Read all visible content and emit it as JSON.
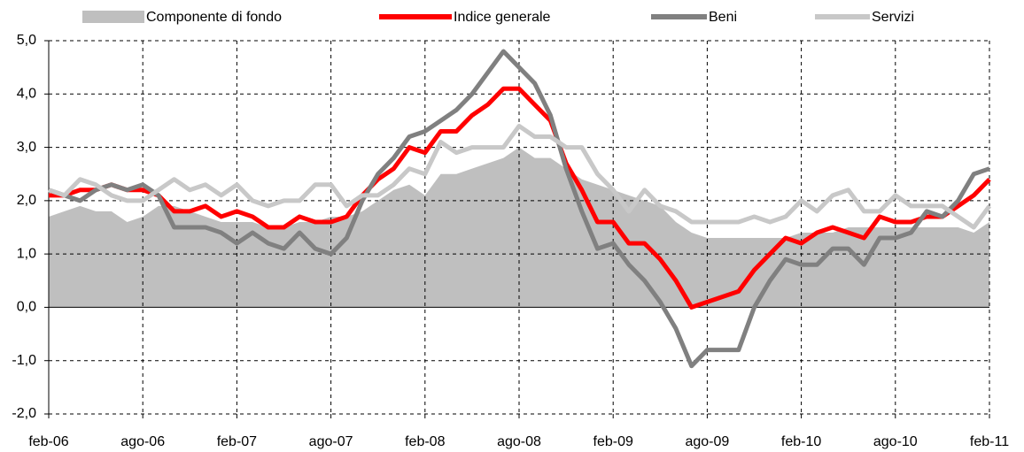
{
  "chart_data": {
    "type": "line",
    "categories": [
      "feb-06",
      null,
      null,
      null,
      null,
      null,
      "ago-06",
      null,
      null,
      null,
      null,
      null,
      "feb-07",
      null,
      null,
      null,
      null,
      null,
      "ago-07",
      null,
      null,
      null,
      null,
      null,
      "feb-08",
      null,
      null,
      null,
      null,
      null,
      "ago-08",
      null,
      null,
      null,
      null,
      null,
      "feb-09",
      null,
      null,
      null,
      null,
      null,
      "ago-09",
      null,
      null,
      null,
      null,
      null,
      "feb-10",
      null,
      null,
      null,
      null,
      null,
      "ago-10",
      null,
      null,
      null,
      null,
      null,
      "feb-11"
    ],
    "series": [
      {
        "name": "Componente di fondo",
        "type": "area",
        "color": "#bfbfbf",
        "values": [
          1.7,
          1.8,
          1.9,
          1.8,
          1.8,
          1.6,
          1.7,
          1.9,
          1.9,
          1.8,
          1.7,
          1.6,
          1.6,
          1.6,
          1.5,
          1.5,
          1.6,
          1.6,
          1.7,
          1.7,
          1.8,
          2.0,
          2.2,
          2.3,
          2.1,
          2.5,
          2.5,
          2.6,
          2.7,
          2.8,
          3.0,
          2.8,
          2.8,
          2.6,
          2.4,
          2.3,
          2.2,
          2.1,
          2.0,
          1.9,
          1.6,
          1.4,
          1.3,
          1.3,
          1.3,
          1.3,
          1.3,
          1.3,
          1.4,
          1.4,
          1.4,
          1.5,
          1.5,
          1.5,
          1.5,
          1.5,
          1.5,
          1.5,
          1.5,
          1.4,
          1.6
        ]
      },
      {
        "name": "Indice generale",
        "type": "line",
        "color": "#ff0000",
        "values": [
          2.1,
          2.1,
          2.2,
          2.2,
          2.3,
          2.2,
          2.2,
          2.1,
          1.8,
          1.8,
          1.9,
          1.7,
          1.8,
          1.7,
          1.5,
          1.5,
          1.7,
          1.6,
          1.6,
          1.7,
          2.1,
          2.4,
          2.6,
          3.0,
          2.9,
          3.3,
          3.3,
          3.6,
          3.8,
          4.1,
          4.1,
          3.8,
          3.5,
          2.7,
          2.2,
          1.6,
          1.6,
          1.2,
          1.2,
          0.9,
          0.5,
          0.0,
          0.1,
          0.2,
          0.3,
          0.7,
          1.0,
          1.3,
          1.2,
          1.4,
          1.5,
          1.4,
          1.3,
          1.7,
          1.6,
          1.6,
          1.7,
          1.7,
          1.9,
          2.1,
          2.4
        ]
      },
      {
        "name": "Beni",
        "type": "line",
        "color": "#808080",
        "values": [
          2.2,
          2.1,
          2.0,
          2.2,
          2.3,
          2.2,
          2.3,
          2.1,
          1.5,
          1.5,
          1.5,
          1.4,
          1.2,
          1.4,
          1.2,
          1.1,
          1.4,
          1.1,
          1.0,
          1.3,
          2.0,
          2.5,
          2.8,
          3.2,
          3.3,
          3.5,
          3.7,
          4.0,
          4.4,
          4.8,
          4.5,
          4.2,
          3.6,
          2.6,
          1.8,
          1.1,
          1.2,
          0.8,
          0.5,
          0.1,
          -0.4,
          -1.1,
          -0.8,
          -0.8,
          -0.8,
          0.0,
          0.5,
          0.9,
          0.8,
          0.8,
          1.1,
          1.1,
          0.8,
          1.3,
          1.3,
          1.4,
          1.8,
          1.7,
          2.0,
          2.5,
          2.6
        ]
      },
      {
        "name": "Servizi",
        "type": "line",
        "color": "#c8c8c8",
        "values": [
          2.2,
          2.1,
          2.4,
          2.3,
          2.1,
          2.0,
          2.0,
          2.2,
          2.4,
          2.2,
          2.3,
          2.1,
          2.3,
          2.0,
          1.9,
          2.0,
          2.0,
          2.3,
          2.3,
          1.9,
          2.1,
          2.1,
          2.3,
          2.6,
          2.5,
          3.1,
          2.9,
          3.0,
          3.0,
          3.0,
          3.4,
          3.2,
          3.2,
          3.0,
          3.0,
          2.5,
          2.2,
          1.8,
          2.2,
          1.9,
          1.8,
          1.6,
          1.6,
          1.6,
          1.6,
          1.7,
          1.6,
          1.7,
          2.0,
          1.8,
          2.1,
          2.2,
          1.8,
          1.8,
          2.1,
          1.9,
          1.9,
          1.9,
          1.7,
          1.5,
          1.9
        ]
      }
    ],
    "ylim": [
      -2,
      5
    ],
    "yticks": [
      {
        "value": -2,
        "label": "-2,0"
      },
      {
        "value": -1,
        "label": "-1,0"
      },
      {
        "value": 0,
        "label": "0,0"
      },
      {
        "value": 1,
        "label": "1,0"
      },
      {
        "value": 2,
        "label": "2,0"
      },
      {
        "value": 3,
        "label": "3,0"
      },
      {
        "value": 4,
        "label": "4,0"
      },
      {
        "value": 5,
        "label": "5,0"
      }
    ],
    "grid": true,
    "legend": "top"
  }
}
